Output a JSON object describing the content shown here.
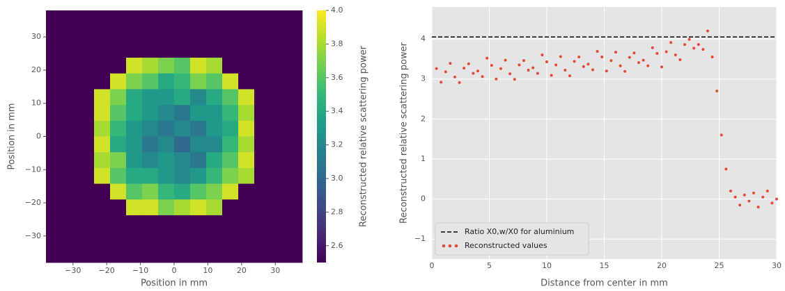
{
  "chart_data": [
    {
      "type": "heatmap",
      "xlabel": "Position in mm",
      "ylabel": "Position in mm",
      "colorbar_label": "Reconstructed relative scattering power",
      "colormap": "viridis",
      "xlim": [
        -38,
        38
      ],
      "ylim": [
        -38,
        38
      ],
      "clim": [
        2.5,
        4.0
      ],
      "xticks": [
        {
          "value": -30,
          "label": "−30"
        },
        {
          "value": -20,
          "label": "−20"
        },
        {
          "value": -10,
          "label": "−10"
        },
        0,
        10,
        20,
        30
      ],
      "yticks": [
        {
          "value": -30,
          "label": "−30"
        },
        {
          "value": -20,
          "label": "−20"
        },
        {
          "value": -10,
          "label": "−10"
        },
        0,
        10,
        20,
        30
      ],
      "cticks": [
        2.6,
        2.8,
        {
          "value": 3.0,
          "label": "3.0"
        },
        3.2,
        3.4,
        3.6,
        3.8,
        {
          "value": 4.0,
          "label": "4.0"
        }
      ],
      "z": [
        [
          2.5,
          2.5,
          2.5,
          2.5,
          2.5,
          2.5,
          2.5,
          2.5,
          2.5,
          2.5,
          2.5,
          2.5,
          2.5,
          2.5,
          2.5,
          2.5
        ],
        [
          2.5,
          2.5,
          2.5,
          2.5,
          2.5,
          2.5,
          2.5,
          2.5,
          2.5,
          2.5,
          2.5,
          2.5,
          2.5,
          2.5,
          2.5,
          2.5
        ],
        [
          2.5,
          2.5,
          2.5,
          2.5,
          2.5,
          2.5,
          2.5,
          2.5,
          2.5,
          2.5,
          2.5,
          2.5,
          2.5,
          2.5,
          2.5,
          2.5
        ],
        [
          2.5,
          2.5,
          2.5,
          2.5,
          2.5,
          3.9,
          3.8,
          3.7,
          3.6,
          3.9,
          3.8,
          2.5,
          2.5,
          2.5,
          2.5,
          2.5
        ],
        [
          2.5,
          2.5,
          2.5,
          2.5,
          3.9,
          3.7,
          3.6,
          3.4,
          3.5,
          3.7,
          3.6,
          3.9,
          2.5,
          2.5,
          2.5,
          2.5
        ],
        [
          2.5,
          2.5,
          2.5,
          3.9,
          3.7,
          3.4,
          3.3,
          3.3,
          3.4,
          3.2,
          3.4,
          3.6,
          3.9,
          2.5,
          2.5,
          2.5
        ],
        [
          2.5,
          2.5,
          2.5,
          3.9,
          3.6,
          3.4,
          3.3,
          3.2,
          3.1,
          3.3,
          3.3,
          3.5,
          3.8,
          2.5,
          2.5,
          2.5
        ],
        [
          2.5,
          2.5,
          2.5,
          3.8,
          3.5,
          3.3,
          3.2,
          3.1,
          3.2,
          3.1,
          3.3,
          3.4,
          3.9,
          2.5,
          2.5,
          2.5
        ],
        [
          2.5,
          2.5,
          2.5,
          3.9,
          3.4,
          3.3,
          3.1,
          3.2,
          3.0,
          3.2,
          3.2,
          3.5,
          3.8,
          2.5,
          2.5,
          2.5
        ],
        [
          2.5,
          2.5,
          2.5,
          3.8,
          3.7,
          3.3,
          3.2,
          3.3,
          3.2,
          3.1,
          3.4,
          3.6,
          3.9,
          2.5,
          2.5,
          2.5
        ],
        [
          2.5,
          2.5,
          2.5,
          3.9,
          3.6,
          3.4,
          3.4,
          3.3,
          3.2,
          3.3,
          3.5,
          3.7,
          3.8,
          2.5,
          2.5,
          2.5
        ],
        [
          2.5,
          2.5,
          2.5,
          2.5,
          3.9,
          3.6,
          3.7,
          3.5,
          3.4,
          3.6,
          3.7,
          3.9,
          2.5,
          2.5,
          2.5,
          2.5
        ],
        [
          2.5,
          2.5,
          2.5,
          2.5,
          2.5,
          3.9,
          3.9,
          3.7,
          3.8,
          3.9,
          3.8,
          2.5,
          2.5,
          2.5,
          2.5,
          2.5
        ],
        [
          2.5,
          2.5,
          2.5,
          2.5,
          2.5,
          2.5,
          2.5,
          2.5,
          2.5,
          2.5,
          2.5,
          2.5,
          2.5,
          2.5,
          2.5,
          2.5
        ],
        [
          2.5,
          2.5,
          2.5,
          2.5,
          2.5,
          2.5,
          2.5,
          2.5,
          2.5,
          2.5,
          2.5,
          2.5,
          2.5,
          2.5,
          2.5,
          2.5
        ],
        [
          2.5,
          2.5,
          2.5,
          2.5,
          2.5,
          2.5,
          2.5,
          2.5,
          2.5,
          2.5,
          2.5,
          2.5,
          2.5,
          2.5,
          2.5,
          2.5
        ]
      ]
    },
    {
      "type": "scatter",
      "xlabel": "Distance from center in mm",
      "ylabel": "Reconstructed relative scattering power",
      "xlim": [
        0,
        30
      ],
      "ylim": [
        -1.5,
        4.8
      ],
      "xticks": [
        0,
        5,
        10,
        15,
        20,
        25,
        30
      ],
      "yticks": [
        {
          "value": -1,
          "label": "−1"
        },
        0,
        1,
        2,
        3,
        4
      ],
      "grid": true,
      "legend": "lower left",
      "hline": {
        "name": "Ratio X0,w/X0 for aluminium",
        "value": 4.05,
        "color": "#000000"
      },
      "series": [
        {
          "name": "Reconstructed values",
          "color": "#e24a33",
          "x": [
            0.4,
            0.8,
            1.2,
            1.6,
            2.0,
            2.4,
            2.8,
            3.2,
            3.6,
            4.0,
            4.4,
            4.8,
            5.2,
            5.6,
            6.0,
            6.4,
            6.8,
            7.2,
            7.6,
            8.0,
            8.4,
            8.8,
            9.2,
            9.6,
            10.0,
            10.4,
            10.8,
            11.2,
            11.6,
            12.0,
            12.4,
            12.8,
            13.2,
            13.6,
            14.0,
            14.4,
            14.8,
            15.2,
            15.6,
            16.0,
            16.4,
            16.8,
            17.2,
            17.6,
            18.0,
            18.4,
            18.8,
            19.2,
            19.6,
            20.0,
            20.4,
            20.8,
            21.2,
            21.6,
            22.0,
            22.4,
            22.8,
            23.2,
            23.6,
            24.0,
            24.4,
            24.8,
            25.2,
            25.6,
            26.0,
            26.4,
            26.8,
            27.2,
            27.6,
            28.0,
            28.4,
            28.8,
            29.2,
            29.6,
            30.0
          ],
          "values": [
            3.26,
            2.92,
            3.18,
            3.39,
            3.05,
            2.91,
            3.27,
            3.38,
            3.14,
            3.2,
            3.06,
            3.52,
            3.34,
            3.0,
            3.26,
            3.47,
            3.13,
            2.99,
            3.35,
            3.46,
            3.22,
            3.28,
            3.14,
            3.6,
            3.43,
            3.09,
            3.35,
            3.56,
            3.22,
            3.08,
            3.44,
            3.55,
            3.31,
            3.37,
            3.23,
            3.69,
            3.55,
            3.2,
            3.46,
            3.67,
            3.33,
            3.19,
            3.54,
            3.65,
            3.41,
            3.47,
            3.33,
            3.78,
            3.64,
            3.3,
            3.68,
            3.91,
            3.6,
            3.48,
            3.86,
            3.99,
            3.77,
            3.86,
            3.74,
            4.2,
            3.55,
            2.7,
            1.6,
            0.75,
            0.2,
            0.05,
            -0.15,
            0.1,
            -0.05,
            0.15,
            -0.2,
            0.05,
            0.2,
            -0.1,
            0.0
          ]
        }
      ]
    }
  ]
}
